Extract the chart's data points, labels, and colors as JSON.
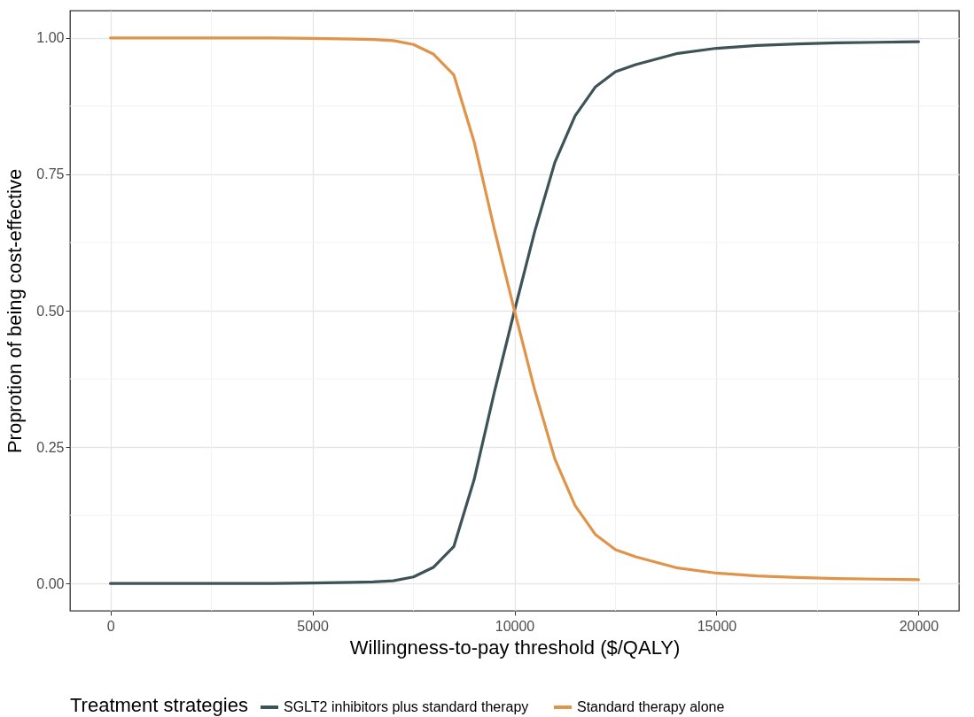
{
  "chart_data": {
    "type": "line",
    "xlabel": "Willingness-to-pay threshold ($/QALY)",
    "ylabel": "Proprotion of being cost-effective",
    "legend_title": "Treatment strategies",
    "x": [
      0,
      1000,
      2000,
      3000,
      4000,
      5000,
      6000,
      6500,
      7000,
      7500,
      8000,
      8500,
      9000,
      9500,
      10000,
      10500,
      11000,
      11500,
      12000,
      12500,
      13000,
      14000,
      15000,
      16000,
      17000,
      18000,
      19000,
      20000
    ],
    "series": [
      {
        "name": "SGLT2 inhibitors plus standard therapy",
        "color": "#3d5358",
        "values": [
          0,
          0,
          0,
          0,
          0,
          0.001,
          0.002,
          0.003,
          0.005,
          0.012,
          0.03,
          0.068,
          0.19,
          0.35,
          0.5,
          0.645,
          0.772,
          0.857,
          0.91,
          0.938,
          0.951,
          0.971,
          0.981,
          0.986,
          0.989,
          0.991,
          0.992,
          0.993
        ]
      },
      {
        "name": "Standard therapy alone",
        "color": "#e0944a",
        "values": [
          1,
          1,
          1,
          1,
          1,
          0.999,
          0.998,
          0.997,
          0.995,
          0.988,
          0.97,
          0.932,
          0.81,
          0.65,
          0.5,
          0.355,
          0.228,
          0.143,
          0.09,
          0.062,
          0.049,
          0.029,
          0.019,
          0.014,
          0.011,
          0.009,
          0.008,
          0.007
        ]
      }
    ],
    "xlim": [
      -1000,
      21000
    ],
    "xticks": [
      0,
      5000,
      10000,
      15000,
      20000
    ],
    "ylim": [
      -0.05,
      1.05
    ],
    "yticks": [
      {
        "value": 0,
        "label": "0.00"
      },
      {
        "value": 0.25,
        "label": "0.25"
      },
      {
        "value": 0.5,
        "label": "0.50"
      },
      {
        "value": 0.75,
        "label": "0.75"
      },
      {
        "value": 1,
        "label": "1.00"
      }
    ],
    "grid": true,
    "legend": "bottom",
    "marker": "none",
    "line_style": "solid"
  }
}
